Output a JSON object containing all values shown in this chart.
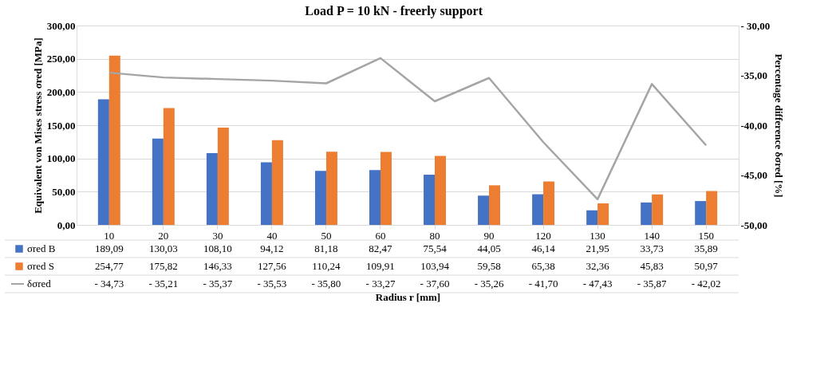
{
  "chart_data": {
    "type": "bar",
    "title": "Load P = 10 kN - freerly support",
    "xlabel": "Radius r [mm]",
    "ylabel": "Equivalent von Mises stress σred [MPa]",
    "y2label": "Percentage difference δσred [%]",
    "categories": [
      "10",
      "20",
      "30",
      "40",
      "50",
      "60",
      "80",
      "90",
      "120",
      "130",
      "140",
      "150"
    ],
    "series": [
      {
        "name": "σred B",
        "type": "bar",
        "color": "#4472c4",
        "values": [
          189.09,
          130.03,
          108.1,
          94.12,
          81.18,
          82.47,
          75.54,
          44.05,
          46.14,
          21.95,
          33.73,
          35.89
        ],
        "value_labels": [
          "189,09",
          "130,03",
          "108,10",
          "94,12",
          "81,18",
          "82,47",
          "75,54",
          "44,05",
          "46,14",
          "21,95",
          "33,73",
          "35,89"
        ]
      },
      {
        "name": "σred S",
        "type": "bar",
        "color": "#ed7d31",
        "values": [
          254.77,
          175.82,
          146.33,
          127.56,
          110.24,
          109.91,
          103.94,
          59.58,
          65.38,
          32.36,
          45.83,
          50.97
        ],
        "value_labels": [
          "254,77",
          "175,82",
          "146,33",
          "127,56",
          "110,24",
          "109,91",
          "103,94",
          "59,58",
          "65,38",
          "32,36",
          "45,83",
          "50,97"
        ]
      },
      {
        "name": "δσred",
        "type": "line",
        "axis": "y2",
        "color": "#a5a5a5",
        "values": [
          -34.73,
          -35.21,
          -35.37,
          -35.53,
          -35.8,
          -33.27,
          -37.6,
          -35.26,
          -41.7,
          -47.43,
          -35.87,
          -42.02
        ],
        "value_labels": [
          "- 34,73",
          "- 35,21",
          "- 35,37",
          "- 35,53",
          "- 35,80",
          "- 33,27",
          "- 37,60",
          "- 35,26",
          "- 41,70",
          "- 47,43",
          "- 35,87",
          "- 42,02"
        ]
      }
    ],
    "ylim": [
      0,
      300
    ],
    "yticks": [
      {
        "value": 0,
        "label": "0,00"
      },
      {
        "value": 50,
        "label": "50,00"
      },
      {
        "value": 100,
        "label": "100,00"
      },
      {
        "value": 150,
        "label": "150,00"
      },
      {
        "value": 200,
        "label": "200,00"
      },
      {
        "value": 250,
        "label": "250,00"
      },
      {
        "value": 300,
        "label": "300,00"
      }
    ],
    "y2lim": [
      -50,
      -30
    ],
    "y2ticks": [
      {
        "value": -30,
        "label": "- 30,00"
      },
      {
        "value": -35,
        "label": "-35,00"
      },
      {
        "value": -40,
        "label": "-40,00"
      },
      {
        "value": -45,
        "label": "-45,00"
      },
      {
        "value": -50,
        "label": "-50,00"
      }
    ],
    "grid": "y",
    "legend": "bottom"
  }
}
